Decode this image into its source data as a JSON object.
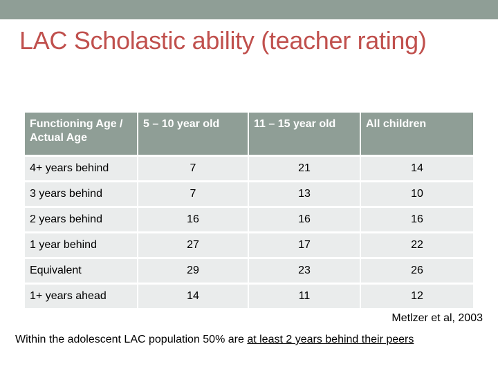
{
  "header": {
    "accent": "#8f9e96",
    "title": "LAC Scholastic ability (teacher rating)",
    "title_color": "#c0504d"
  },
  "table": {
    "columns": [
      "Functioning Age / Actual Age",
      "5 – 10 year old",
      "11 – 15 year old",
      "All children"
    ],
    "rows": [
      {
        "label": "4+ years behind",
        "values": [
          "7",
          "21",
          "14"
        ]
      },
      {
        "label": "3 years behind",
        "values": [
          "7",
          "13",
          "10"
        ]
      },
      {
        "label": "2 years behind",
        "values": [
          "16",
          "16",
          "16"
        ]
      },
      {
        "label": "1 year behind",
        "values": [
          "27",
          "17",
          "22"
        ]
      },
      {
        "label": "Equivalent",
        "values": [
          "29",
          "23",
          "26"
        ]
      },
      {
        "label": "1+ years ahead",
        "values": [
          "14",
          "11",
          "12"
        ]
      }
    ]
  },
  "citation": "Metlzer et al, 2003",
  "summary": {
    "prefix": "Within the adolescent LAC population 50% are ",
    "emphasis": "at least 2 years behind their peers"
  }
}
